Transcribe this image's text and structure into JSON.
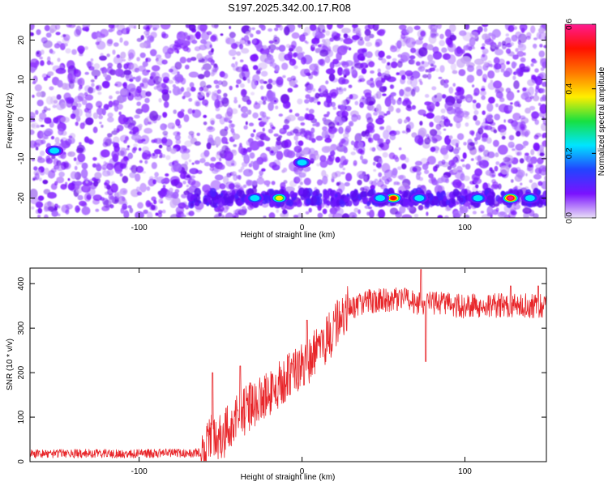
{
  "title": "S197.2025.342.00.17.R08",
  "chart_data": [
    {
      "type": "heatmap",
      "xlabel": "Height of straight line (km)",
      "ylabel": "Frequency (Hz)",
      "xlim": [
        -167,
        150
      ],
      "ylim": [
        -25,
        24
      ],
      "x_ticks": [
        -100,
        0,
        100
      ],
      "y_ticks": [
        -20,
        -10,
        0,
        10,
        20
      ],
      "colorbar": {
        "label": "Normalized spectral amplitude",
        "range": [
          0.0,
          0.6
        ],
        "ticks": [
          "0.0",
          "0.2",
          "0.4",
          "0.6"
        ],
        "colors": [
          "#e9dff7",
          "#7a12ff",
          "#2244ff",
          "#00e5ff",
          "#18e040",
          "#ffee00",
          "#ff7700",
          "#ff1100",
          "#ff1a90"
        ]
      },
      "background_pattern": "dense purple speckle across all frequencies",
      "bright_band": {
        "frequency": -20,
        "x_range": [
          -70,
          150
        ],
        "peaks": [
          {
            "x": -14,
            "y": -20,
            "amplitude": 0.3
          },
          {
            "x": 56,
            "y": -20,
            "amplitude": 0.45
          },
          {
            "x": 128,
            "y": -20,
            "amplitude": 0.5
          },
          {
            "x": -29,
            "y": -20,
            "amplitude": 0.15
          },
          {
            "x": 48,
            "y": -20,
            "amplitude": 0.18
          },
          {
            "x": 72,
            "y": -20,
            "amplitude": 0.14
          },
          {
            "x": 108,
            "y": -20,
            "amplitude": 0.13
          },
          {
            "x": 140,
            "y": -20,
            "amplitude": 0.15
          }
        ]
      },
      "isolated_spots": [
        {
          "x": -152,
          "y": -8,
          "amplitude": 0.12
        },
        {
          "x": 0,
          "y": -11,
          "amplitude": 0.14
        }
      ]
    },
    {
      "type": "line",
      "xlabel": "Height of straight line (km)",
      "ylabel": "SNR (10 * v/v)",
      "xlim": [
        -167,
        150
      ],
      "ylim": [
        0,
        435
      ],
      "x_ticks": [
        -100,
        0,
        100
      ],
      "y_ticks": [
        0,
        100,
        200,
        300,
        400
      ],
      "color": "#e8262a",
      "trend_points": [
        {
          "x": -167,
          "y": 18
        },
        {
          "x": -100,
          "y": 18
        },
        {
          "x": -62,
          "y": 20
        },
        {
          "x": -55,
          "y": 60
        },
        {
          "x": -50,
          "y": 50
        },
        {
          "x": -40,
          "y": 100
        },
        {
          "x": -30,
          "y": 130
        },
        {
          "x": -20,
          "y": 150
        },
        {
          "x": -10,
          "y": 185
        },
        {
          "x": 0,
          "y": 210
        },
        {
          "x": 10,
          "y": 250
        },
        {
          "x": 20,
          "y": 300
        },
        {
          "x": 28,
          "y": 345
        },
        {
          "x": 40,
          "y": 360
        },
        {
          "x": 60,
          "y": 365
        },
        {
          "x": 75,
          "y": 355
        },
        {
          "x": 100,
          "y": 350
        },
        {
          "x": 150,
          "y": 350
        }
      ],
      "spikes": [
        {
          "x": -55,
          "y": 200
        },
        {
          "x": -38,
          "y": 215
        },
        {
          "x": 3,
          "y": 318
        },
        {
          "x": 20,
          "y": 315
        },
        {
          "x": 73,
          "y": 432
        },
        {
          "x": 76,
          "y": 225
        },
        {
          "x": 128,
          "y": 395
        },
        {
          "x": 145,
          "y": 395
        }
      ]
    }
  ]
}
